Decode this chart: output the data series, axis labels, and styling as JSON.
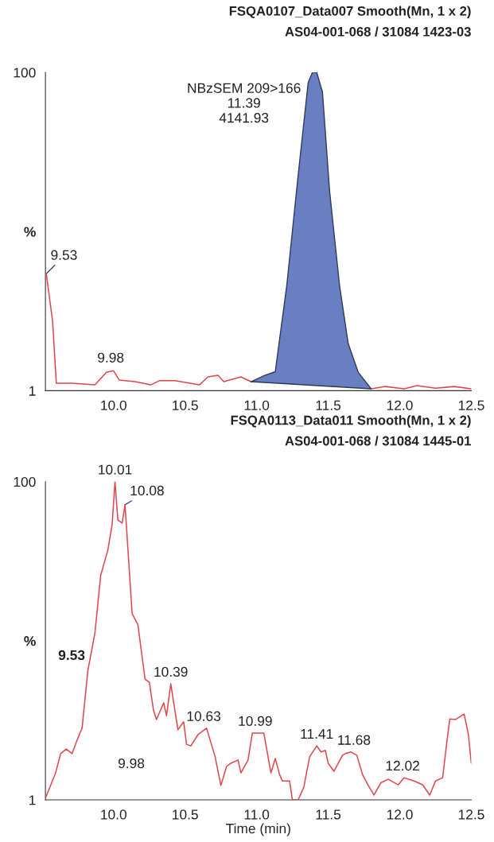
{
  "chart_data": [
    {
      "type": "line",
      "title": "FSQA0107_Data007 Smooth(Mn, 1 x 2)",
      "subtitle": "AS04-001-068 / 31084 1423-03",
      "xlim": [
        9.524,
        12.5
      ],
      "xticks": [
        {
          "value": 10,
          "label": "10.0"
        },
        {
          "value": 10.5,
          "label": "10.5"
        },
        {
          "value": 11,
          "label": "11.0"
        },
        {
          "value": 11.5,
          "label": "11.5"
        },
        {
          "value": 12,
          "label": "12.0"
        },
        {
          "value": 12.5,
          "label": "12.5"
        }
      ],
      "ylim": [
        1,
        100
      ],
      "yticks": [
        1,
        {
          "value": 50.5,
          "label": "%"
        },
        100
      ],
      "grid": false,
      "series": [
        {
          "color": "#e0454c",
          "x": [
            9.53,
            9.574,
            9.6,
            9.71,
            9.87,
            9.95,
            10.0,
            10.04,
            10.15,
            10.26,
            10.32,
            10.43,
            10.6,
            10.66,
            10.73,
            10.77,
            10.89,
            10.96,
            11.4,
            11.8,
            11.9,
            12.03,
            12.12,
            12.25,
            12.38,
            12.5
          ],
          "values": [
            37.4,
            22.6,
            3.3,
            3.3,
            2.8,
            6.7,
            7.2,
            4.3,
            3.8,
            2.8,
            4.1,
            4.1,
            2.8,
            5.3,
            5.8,
            3.8,
            5.3,
            3.8,
            null,
            1.6,
            2.3,
            1.6,
            2.6,
            1.8,
            2.3,
            1.6
          ]
        },
        {
          "color": "#303957",
          "x": [
            10.96,
            11.38,
            11.8
          ],
          "values": [
            3.8,
            2.7,
            1.6
          ]
        },
        {
          "type": "area",
          "color": "#6a7fc1",
          "x": [
            10.96,
            11.06,
            11.13,
            11.21,
            11.29,
            11.36,
            11.39,
            11.42,
            11.46,
            11.51,
            11.58,
            11.64,
            11.71,
            11.8
          ],
          "values": [
            3.8,
            5.8,
            6.9,
            33.5,
            68,
            96.8,
            100,
            100,
            93.9,
            63,
            33.5,
            15.6,
            6.7,
            1.6
          ]
        }
      ],
      "annotations": [
        {
          "text": "NBzSEM 209>166\n11.39\n4141.93",
          "x": 11.39,
          "y": 100
        },
        {
          "text": "9.53",
          "x": 9.53,
          "y": 37.4
        },
        {
          "text": "9.98",
          "x": 9.98,
          "y": 7.2
        }
      ]
    },
    {
      "type": "line",
      "title": "FSQA0113_Data011 Smooth(Mn, 1 x 2)",
      "subtitle": "AS04-001-068 / 31084 1445-01",
      "xlabel": "Time (min)",
      "xlim": [
        9.524,
        12.5
      ],
      "xticks": [
        {
          "value": 10,
          "label": "10.0"
        },
        {
          "value": 10.5,
          "label": "10.5"
        },
        {
          "value": 11,
          "label": "11.0"
        },
        {
          "value": 11.5,
          "label": "11.5"
        },
        {
          "value": 12,
          "label": "12.0"
        },
        {
          "value": 12.5,
          "label": "12.5"
        }
      ],
      "ylim": [
        1,
        100
      ],
      "yticks": [
        1,
        {
          "value": 50.5,
          "label": "%"
        },
        100
      ],
      "grid": false,
      "series": [
        {
          "color": "#e0454c",
          "x": [
            9.524,
            9.595,
            9.63,
            9.67,
            9.71,
            9.76,
            9.78,
            9.82,
            9.87,
            9.91,
            9.96,
            9.99,
            10.01,
            10.03,
            10.06,
            10.08,
            10.13,
            10.17,
            10.22,
            10.25,
            10.28,
            10.3,
            10.35,
            10.37,
            10.4,
            10.45,
            10.49,
            10.51,
            10.54,
            10.59,
            10.65,
            10.71,
            10.75,
            10.79,
            10.82,
            10.87,
            10.89,
            10.94,
            10.97,
            11.01,
            11.05,
            11.1,
            11.13,
            11.16,
            11.18,
            11.23,
            11.25,
            11.29,
            11.33,
            11.37,
            11.42,
            11.45,
            11.48,
            11.5,
            11.54,
            11.6,
            11.62,
            11.66,
            11.7,
            11.74,
            11.78,
            11.82,
            11.87,
            11.92,
            11.99,
            12.03,
            12.1,
            12.16,
            12.21,
            12.25,
            12.3,
            12.33,
            12.35,
            12.39,
            12.45,
            12.48,
            12.5
          ],
          "values": [
            1.5,
            9.4,
            15.4,
            16.8,
            15.4,
            21.3,
            23.3,
            41.1,
            53,
            70.8,
            78.7,
            86.6,
            100,
            88.1,
            87.1,
            92.8,
            58.9,
            55.5,
            38.6,
            37.6,
            28.7,
            26,
            31.2,
            27.2,
            37.1,
            22.8,
            25.3,
            18.3,
            17.8,
            21.3,
            23.3,
            14.4,
            5.5,
            11.4,
            12.4,
            13.4,
            9.4,
            13.4,
            21.8,
            21.8,
            21.8,
            9.4,
            13.9,
            8.9,
            6.9,
            6.9,
            1,
            1,
            5,
            14.4,
            17.8,
            15.9,
            16.4,
            12.4,
            9.9,
            14.9,
            15.4,
            15.9,
            14.9,
            8.9,
            5.5,
            2.5,
            6.4,
            7.4,
            5.7,
            7.9,
            6.9,
            5.7,
            2.5,
            6.9,
            7.9,
            19.3,
            26.2,
            26,
            27.7,
            21.3,
            12.4
          ]
        }
      ],
      "annotations": [
        {
          "text": "10.01",
          "x": 10.01,
          "y": 100
        },
        {
          "text": "10.08",
          "x": 10.08,
          "y": 92.8
        },
        "9.53",
        "9.98",
        {
          "text": "10.39",
          "x": 10.4,
          "y": 37.1
        },
        {
          "text": "10.63",
          "x": 10.63,
          "y": 23.3
        },
        {
          "text": "10.99",
          "x": 10.99,
          "y": 21.8
        },
        {
          "text": "11.41",
          "x": 11.42,
          "y": 17.8
        },
        {
          "text": "11.68",
          "x": 11.68,
          "y": 15.9
        },
        {
          "text": "12.02",
          "x": 12.02,
          "y": 7.9
        }
      ]
    }
  ]
}
